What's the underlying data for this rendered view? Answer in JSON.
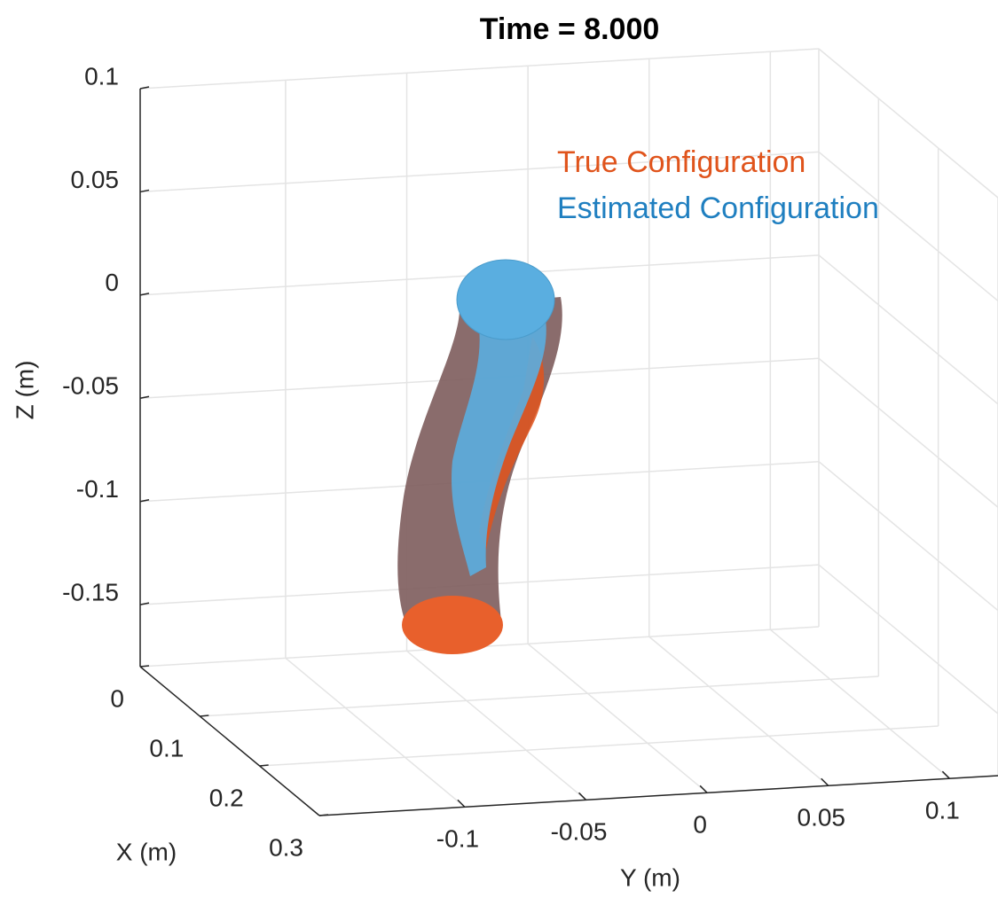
{
  "chart_data": {
    "type": "surface3d",
    "title": "Time = 8.000",
    "xlabel": "X (m)",
    "ylabel": "Y (m)",
    "zlabel": "Z (m)",
    "xlim": [
      0,
      0.3
    ],
    "xticks": [
      0,
      0.1,
      0.2,
      0.3
    ],
    "ylim": [
      -0.16,
      0.12
    ],
    "yticks": [
      -0.1,
      -0.05,
      0,
      0.05,
      0.1
    ],
    "zlim": [
      -0.18,
      0.1
    ],
    "zticks": [
      -0.15,
      -0.1,
      -0.05,
      0,
      0.05,
      0.1
    ],
    "grid": true,
    "series": [
      {
        "name": "True Configuration",
        "color": "#e0541c"
      },
      {
        "name": "Estimated Configuration",
        "color": "#1f7fc0"
      }
    ]
  }
}
